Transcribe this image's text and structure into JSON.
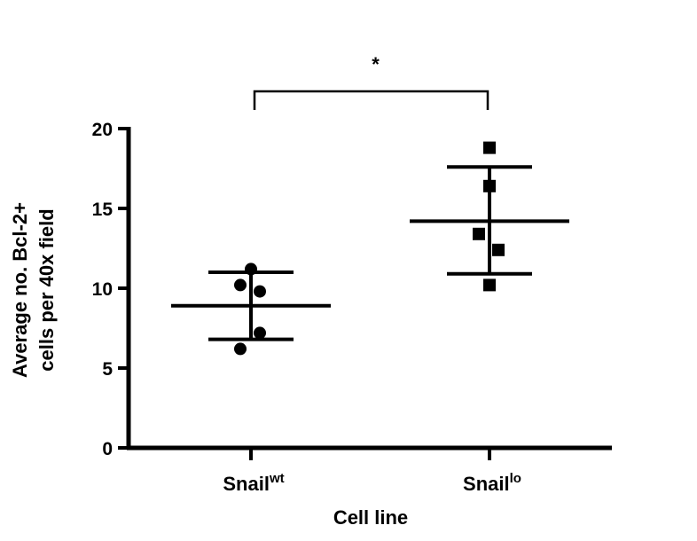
{
  "chart_data": {
    "type": "scatter",
    "xlabel": "Cell line",
    "ylabel_lines": [
      "Average no. Bcl-2+",
      "cells per 40x field"
    ],
    "ylim": [
      0,
      20
    ],
    "yticks": [
      0,
      5,
      10,
      15,
      20
    ],
    "grid": false,
    "categories": [
      {
        "base": "Snail",
        "sup": "wt"
      },
      {
        "base": "Snail",
        "sup": "lo"
      }
    ],
    "series": [
      {
        "category_index": 0,
        "marker": "circle",
        "points": [
          11.2,
          10.2,
          9.8,
          7.2,
          6.2
        ],
        "mean": 8.9,
        "sd_upper": 11.0,
        "sd_lower": 6.8
      },
      {
        "category_index": 1,
        "marker": "square",
        "points": [
          18.8,
          16.4,
          13.4,
          12.4,
          10.2
        ],
        "mean": 14.2,
        "sd_upper": 17.6,
        "sd_lower": 10.9
      }
    ],
    "significance": {
      "between": [
        0,
        1
      ],
      "label": "*"
    },
    "colors": {
      "marks": "#000000",
      "background": "#ffffff"
    }
  }
}
